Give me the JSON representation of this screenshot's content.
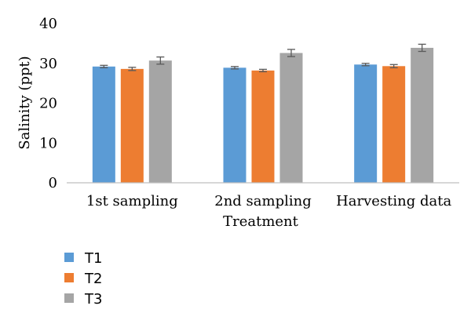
{
  "chart_data": {
    "type": "bar",
    "title": "",
    "xlabel": "Treatment",
    "ylabel": "Salinity (ppt)",
    "ylim": [
      0,
      40
    ],
    "yticks": [
      "0",
      "10",
      "20",
      "30",
      "40"
    ],
    "grid": false,
    "legend_position": "bottom-left",
    "categories": [
      "1st sampling",
      "2nd sampling",
      "Harvesting data"
    ],
    "series": [
      {
        "name": "T1",
        "color": "#5b9bd5",
        "values": [
          29.2,
          28.9,
          29.7
        ],
        "errors": [
          0.3,
          0.3,
          0.3
        ]
      },
      {
        "name": "T2",
        "color": "#ed7d31",
        "values": [
          28.6,
          28.2,
          29.3
        ],
        "errors": [
          0.4,
          0.3,
          0.4
        ]
      },
      {
        "name": "T3",
        "color": "#a5a5a5",
        "values": [
          30.7,
          32.6,
          33.9
        ],
        "errors": [
          0.9,
          0.9,
          0.9
        ]
      }
    ]
  }
}
